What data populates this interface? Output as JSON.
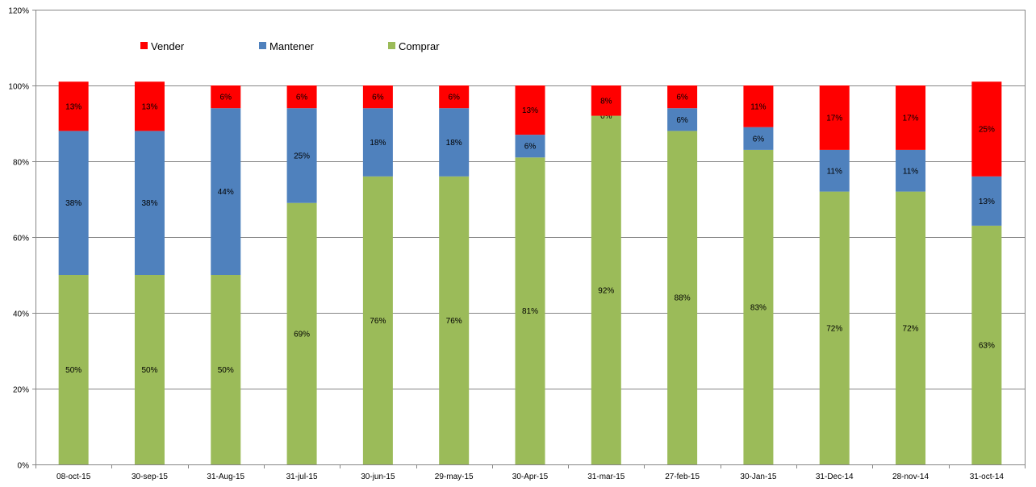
{
  "chart_data": {
    "type": "bar",
    "stacked": true,
    "title": "",
    "xlabel": "",
    "ylabel": "",
    "ylim": [
      0,
      120
    ],
    "yticks": [
      "0%",
      "20%",
      "40%",
      "60%",
      "80%",
      "100%",
      "120%"
    ],
    "ytick_values": [
      0,
      20,
      40,
      60,
      80,
      100,
      120
    ],
    "grid": true,
    "legend_position": "top-left",
    "categories": [
      "08-oct-15",
      "30-sep-15",
      "31-Aug-15",
      "31-jul-15",
      "30-jun-15",
      "29-may-15",
      "30-Apr-15",
      "31-mar-15",
      "27-feb-15",
      "30-Jan-15",
      "31-Dec-14",
      "28-nov-14",
      "31-oct-14"
    ],
    "series": [
      {
        "name": "Comprar",
        "color": "#9bbb59",
        "values": [
          50,
          50,
          50,
          69,
          76,
          76,
          81,
          92,
          88,
          83,
          72,
          72,
          63
        ],
        "labels": [
          "50%",
          "50%",
          "50%",
          "69%",
          "76%",
          "76%",
          "81%",
          "92%",
          "88%",
          "83%",
          "72%",
          "72%",
          "63%"
        ]
      },
      {
        "name": "Mantener",
        "color": "#4f81bd",
        "values": [
          38,
          38,
          44,
          25,
          18,
          18,
          6,
          0,
          6,
          6,
          11,
          11,
          13
        ],
        "labels": [
          "38%",
          "38%",
          "44%",
          "25%",
          "18%",
          "18%",
          "6%",
          "0%",
          "6%",
          "6%",
          "11%",
          "11%",
          "13%"
        ]
      },
      {
        "name": "Vender",
        "color": "#ff0000",
        "values": [
          13,
          13,
          6,
          6,
          6,
          6,
          13,
          8,
          6,
          11,
          17,
          17,
          25
        ],
        "labels": [
          "13%",
          "13%",
          "6%",
          "6%",
          "6%",
          "6%",
          "13%",
          "8%",
          "6%",
          "11%",
          "17%",
          "17%",
          "25%"
        ]
      }
    ],
    "legend_order": [
      "Vender",
      "Mantener",
      "Comprar"
    ]
  }
}
